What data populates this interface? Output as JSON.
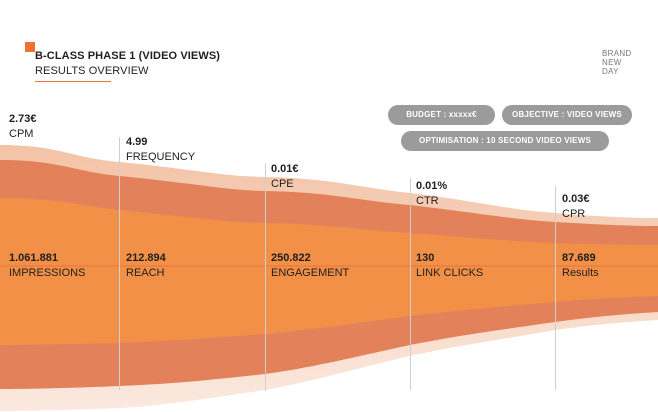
{
  "header": {
    "title": "B-CLASS PHASE 1 (VIDEO VIEWS)",
    "subtitle": "RESULTS OVERVIEW",
    "logo": [
      "BRAND",
      "NEW",
      "DAY"
    ]
  },
  "pills": {
    "budget": "BUDGET : xxxxx€",
    "objective": "OBJECTIVE : VIDEO VIEWS",
    "optimisation": "OPTIMISATION : 10 SECOND VIDEO VIEWS"
  },
  "top_metrics": [
    {
      "value": "2.73€",
      "label": "CPM"
    },
    {
      "value": "4.99",
      "label": "FREQUENCY"
    },
    {
      "value": "0.01€",
      "label": "CPE"
    },
    {
      "value": "0.01%",
      "label": "CTR"
    },
    {
      "value": "0.03€",
      "label": "CPR"
    }
  ],
  "funnel_metrics": [
    {
      "value": "1.061.881",
      "label": "IMPRESSIONS"
    },
    {
      "value": "212.894",
      "label": "REACH"
    },
    {
      "value": "250.822",
      "label": "ENGAGEMENT"
    },
    {
      "value": "130",
      "label": "LINK CLICKS"
    },
    {
      "value": "87.689",
      "label": "Results"
    }
  ],
  "colors": {
    "accent": "#ee7333",
    "funnel_outer": "#f7d8c6",
    "funnel_mid": "#e07d50",
    "funnel_core": "#f29048",
    "pill": "#9b9b9b"
  }
}
